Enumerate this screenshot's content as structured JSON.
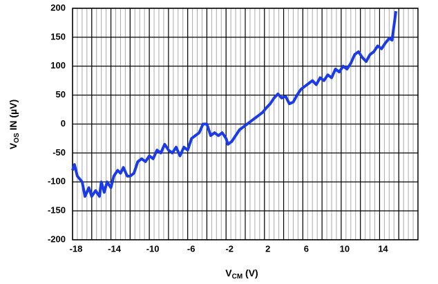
{
  "chart_data": {
    "type": "line",
    "xlabel": {
      "main": "V",
      "sub": "CM",
      "rest": " (V)"
    },
    "ylabel": {
      "main": "V",
      "sub": "OS",
      "rest": " IN (µV)"
    },
    "xlim": [
      -18,
      18
    ],
    "ylim": [
      -200,
      200
    ],
    "xticks": [
      -18,
      -14,
      -10,
      -6,
      -2,
      2,
      6,
      10,
      14
    ],
    "x_minor_ticks": [
      -16,
      -12,
      -8,
      -4,
      0,
      4,
      8,
      12,
      16
    ],
    "yticks": [
      -200,
      -150,
      -100,
      -50,
      0,
      50,
      100,
      150,
      200
    ],
    "grid": true,
    "series": [
      {
        "name": "VOS",
        "color": "#1a3be6",
        "x": [
          -18,
          -17.8,
          -17.5,
          -17,
          -16.7,
          -16.3,
          -16,
          -15.6,
          -15.2,
          -15,
          -14.7,
          -14.4,
          -14,
          -13.7,
          -13.3,
          -13,
          -12.7,
          -12.3,
          -12,
          -11.6,
          -11.2,
          -10.8,
          -10.4,
          -10,
          -9.6,
          -9.2,
          -8.8,
          -8.4,
          -8,
          -7.6,
          -7.2,
          -6.8,
          -6.4,
          -6,
          -5.6,
          -5.2,
          -4.8,
          -4.4,
          -4,
          -3.6,
          -3.2,
          -2.8,
          -2.4,
          -2,
          -1.8,
          -1.4,
          -1,
          -0.6,
          -0.2,
          0.2,
          0.6,
          1,
          1.4,
          1.8,
          2.2,
          2.6,
          3,
          3.4,
          3.8,
          4.2,
          4.6,
          5,
          5.4,
          5.8,
          6.2,
          6.6,
          7,
          7.4,
          7.8,
          8.2,
          8.6,
          9,
          9.4,
          9.8,
          10.2,
          10.6,
          11,
          11.4,
          11.8,
          12.2,
          12.6,
          13,
          13.4,
          13.8,
          14.2,
          14.6,
          15,
          15.3,
          15.7
        ],
        "values": [
          -80,
          -70,
          -90,
          -100,
          -125,
          -110,
          -125,
          -115,
          -125,
          -100,
          -118,
          -100,
          -110,
          -90,
          -80,
          -85,
          -75,
          -90,
          -90,
          -85,
          -65,
          -60,
          -65,
          -55,
          -60,
          -45,
          -50,
          -35,
          -45,
          -50,
          -40,
          -55,
          -40,
          -45,
          -25,
          -20,
          -15,
          0,
          0,
          -20,
          -15,
          -20,
          -15,
          -25,
          -35,
          -30,
          -20,
          -10,
          -5,
          0,
          5,
          10,
          15,
          20,
          28,
          35,
          45,
          52,
          45,
          48,
          35,
          38,
          50,
          60,
          65,
          70,
          75,
          68,
          80,
          75,
          85,
          80,
          95,
          90,
          100,
          95,
          105,
          120,
          125,
          115,
          108,
          120,
          125,
          135,
          130,
          140,
          148,
          145,
          195
        ]
      }
    ]
  }
}
